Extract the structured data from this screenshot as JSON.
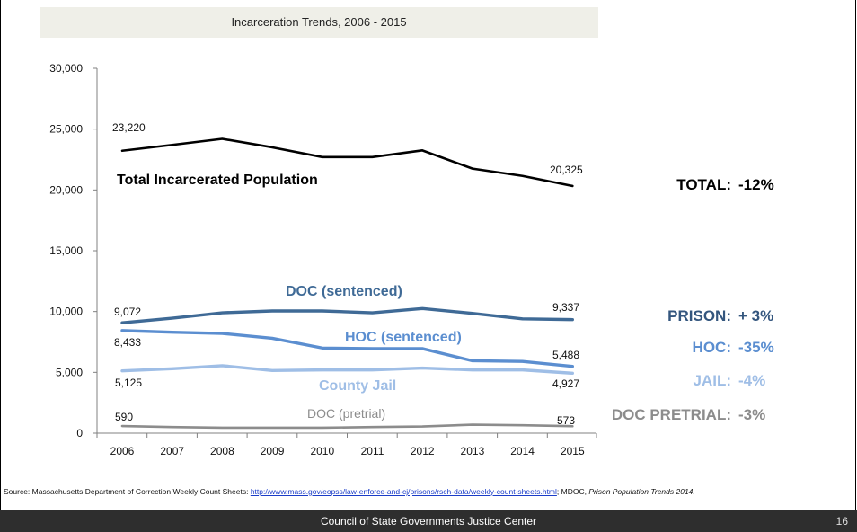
{
  "chart_data": {
    "type": "line",
    "title": "Incarceration Trends, 2006 - 2015",
    "x": [
      "2006",
      "2007",
      "2008",
      "2009",
      "2010",
      "2011",
      "2012",
      "2013",
      "2014",
      "2015"
    ],
    "y_ticks": [
      "0",
      "5,000",
      "10,000",
      "15,000",
      "20,000",
      "25,000",
      "30,000"
    ],
    "ylim": [
      0,
      30000
    ],
    "grid": false,
    "series": [
      {
        "name": "Total Incarcerated Population",
        "color": "#000000",
        "values": [
          23220,
          23700,
          24200,
          23500,
          22700,
          22700,
          23250,
          21750,
          21150,
          20325
        ],
        "first_label": "23,220",
        "last_label": "20,325",
        "summary_label": "TOTAL:",
        "summary_value": "-12%",
        "summary_color": "#000000"
      },
      {
        "name": "DOC (sentenced)",
        "color": "#3f6a96",
        "values": [
          9072,
          9450,
          9900,
          10050,
          10050,
          9900,
          10250,
          9850,
          9400,
          9337
        ],
        "first_label": "9,072",
        "last_label": "9,337",
        "summary_label": "PRISON:",
        "summary_value": "+ 3%",
        "summary_color": "#34567e"
      },
      {
        "name": "HOC (sentenced)",
        "color": "#5b8ed0",
        "values": [
          8433,
          8300,
          8200,
          7800,
          7000,
          6950,
          6950,
          5950,
          5900,
          5488
        ],
        "first_label": "8,433",
        "last_label": "5,488",
        "summary_label": "HOC:",
        "summary_value": "-35%",
        "summary_color": "#5b8ed0"
      },
      {
        "name": "County Jail",
        "color": "#9fbee6",
        "values": [
          5125,
          5300,
          5550,
          5150,
          5200,
          5200,
          5350,
          5200,
          5200,
          4927
        ],
        "first_label": "5,125",
        "last_label": "4,927",
        "summary_label": "JAIL:",
        "summary_value": "-4%",
        "summary_color": "#9fbee6"
      },
      {
        "name": "DOC (pretrial)",
        "color": "#8c8c8c",
        "values": [
          590,
          500,
          450,
          450,
          450,
          500,
          550,
          700,
          650,
          573
        ],
        "first_label": "590",
        "last_label": "573",
        "summary_label": "DOC PRETRIAL:",
        "summary_value": "-3%",
        "summary_color": "#8c8c8c"
      }
    ]
  },
  "source": {
    "prefix": "Source: Massachusetts Department of Correction Weekly Count Sheets: ",
    "link": "http://www.mass.gov/eopss/law-enforce-and-cj/prisons/rsch-data/weekly-count-sheets.html",
    "suffix": "; MDOC, ",
    "italic": "Prison Population Trends 2014."
  },
  "footer": {
    "org": "Council of State Governments Justice Center",
    "page": "16"
  }
}
